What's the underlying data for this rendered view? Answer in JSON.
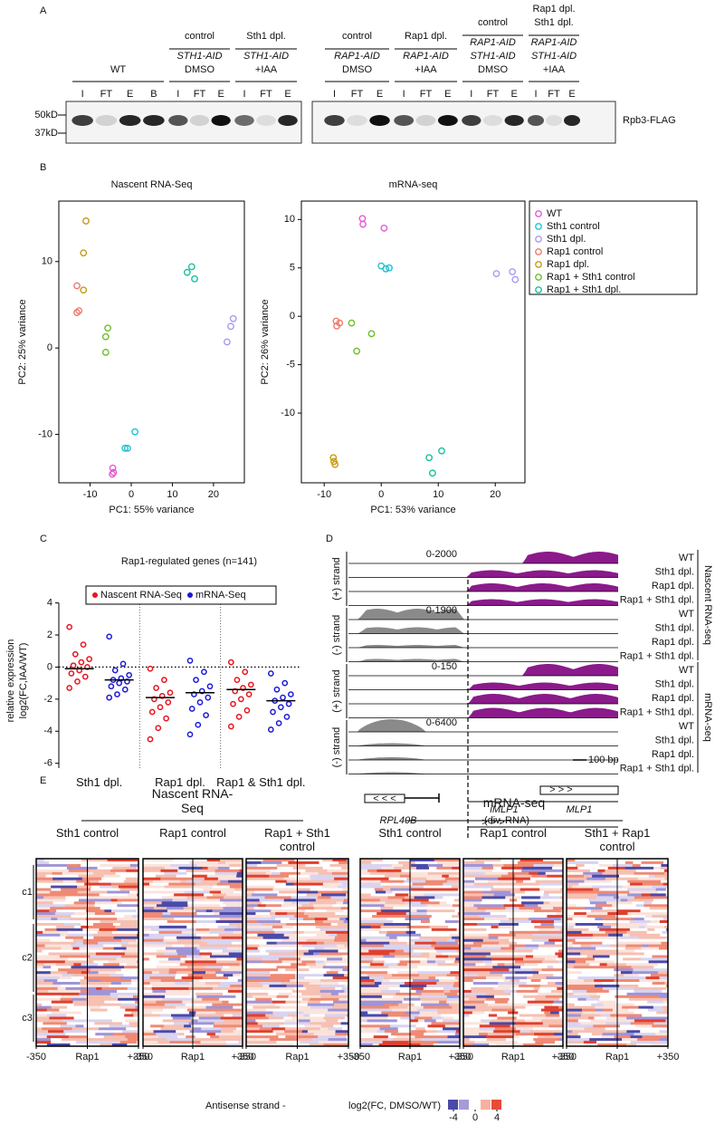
{
  "panel_labels": [
    "A",
    "B",
    "C",
    "D",
    "E"
  ],
  "panel_a": {
    "groups": [
      {
        "condition": [
          "WT"
        ],
        "lanes": [
          "I",
          "FT",
          "E",
          "B"
        ]
      },
      {
        "condition": [
          "control"
        ],
        "genotype": [
          "STH1-AID"
        ],
        "treatment": "DMSO",
        "lanes": [
          "I",
          "FT",
          "E"
        ]
      },
      {
        "condition": [
          "Sth1 dpl."
        ],
        "genotype": [
          "STH1-AID"
        ],
        "treatment": "+IAA",
        "lanes": [
          "I",
          "FT",
          "E"
        ]
      },
      {
        "condition": [
          "control"
        ],
        "genotype": [
          "RAP1-AID"
        ],
        "treatment": "DMSO",
        "lanes": [
          "I",
          "FT",
          "E"
        ]
      },
      {
        "condition": [
          "Rap1 dpl."
        ],
        "genotype": [
          "RAP1-AID"
        ],
        "treatment": "+IAA",
        "lanes": [
          "I",
          "FT",
          "E"
        ]
      },
      {
        "condition": [
          "control"
        ],
        "genotype": [
          "RAP1-AID",
          "STH1-AID"
        ],
        "treatment": "DMSO",
        "lanes": [
          "I",
          "FT",
          "E"
        ]
      },
      {
        "condition": [
          "Rap1 dpl.",
          "Sth1 dpl."
        ],
        "genotype": [
          "RAP1-AID",
          "STH1-AID"
        ],
        "treatment": "+IAA",
        "lanes": [
          "I",
          "FT",
          "E"
        ]
      }
    ],
    "markers": [
      "50kD",
      "37kD"
    ],
    "protein": "Rpb3-FLAG"
  },
  "chart_data": [
    {
      "type": "scatter",
      "title": "Nascent RNA-Seq",
      "xlabel": "PC1: 55% variance",
      "ylabel": "PC2: 25% variance",
      "xlim": [
        -17.6,
        27.5
      ],
      "ylim": [
        -15.6,
        17
      ],
      "xticks": [
        -10,
        0,
        10,
        20
      ],
      "yticks": [
        -10,
        0,
        10
      ],
      "series": [
        {
          "name": "WT",
          "color": "#e45ad6",
          "x": [
            -4.5,
            -4.3,
            -4.6
          ],
          "values": [
            -13.9,
            -14.4,
            -14.6
          ]
        },
        {
          "name": "Sth1 control",
          "color": "#1ec2d4",
          "x": [
            0.9,
            -0.9,
            -1.5
          ],
          "values": [
            -9.7,
            -11.6,
            -11.6
          ]
        },
        {
          "name": "Sth1 dpl.",
          "color": "#a79bef",
          "x": [
            24.8,
            24.2,
            23.3
          ],
          "values": [
            3.4,
            2.5,
            0.7
          ]
        },
        {
          "name": "Rap1 control",
          "color": "#ef7b6d",
          "x": [
            -13.2,
            -12.7,
            -13.2
          ],
          "values": [
            7.2,
            4.3,
            4.1
          ]
        },
        {
          "name": "Rap1 dpl.",
          "color": "#c59a1a",
          "x": [
            -11,
            -11.6,
            -11.6
          ],
          "values": [
            14.7,
            11,
            6.7
          ]
        },
        {
          "name": "Rap1 + Sth1 control",
          "color": "#6dbe2a",
          "x": [
            -5.7,
            -6.2,
            -6.2
          ],
          "values": [
            2.3,
            1.3,
            -0.5
          ]
        },
        {
          "name": "Rap1 + Sth1 dpl.",
          "color": "#1bbf9c",
          "x": [
            14.7,
            13.6,
            15.4
          ],
          "values": [
            9.4,
            8.75,
            8
          ]
        }
      ]
    },
    {
      "type": "scatter",
      "title": "mRNA-seq",
      "xlabel": "PC1: 53% variance",
      "ylabel": "PC2: 26% variance",
      "xlim": [
        -14,
        25.2
      ],
      "ylim": [
        -17.2,
        11.9
      ],
      "xticks": [
        -10,
        0,
        10,
        20
      ],
      "yticks": [
        -10,
        -5,
        0,
        5,
        10
      ],
      "series": [
        {
          "color": "#e45ad6",
          "x": [
            -3.3,
            -3.2,
            0.5
          ],
          "values": [
            10.1,
            9.5,
            9.1
          ]
        },
        {
          "color": "#1ec2d4",
          "x": [
            0,
            0.8,
            1.4
          ],
          "values": [
            5.2,
            4.9,
            5.0
          ]
        },
        {
          "color": "#a79bef",
          "x": [
            20.2,
            23,
            23.5
          ],
          "values": [
            4.4,
            4.6,
            3.8
          ]
        },
        {
          "color": "#ef7b6d",
          "x": [
            -7.9,
            -7.8,
            -7.3
          ],
          "values": [
            -0.5,
            -1,
            -0.7
          ]
        },
        {
          "color": "#c59a1a",
          "x": [
            -8.4,
            -8.3,
            -8.1
          ],
          "values": [
            -14.6,
            -15,
            -15.3
          ]
        },
        {
          "color": "#6dbe2a",
          "x": [
            -5.2,
            -4.3,
            -1.7
          ],
          "values": [
            -0.7,
            -3.6,
            -1.8
          ]
        },
        {
          "color": "#1bbf9c",
          "x": [
            8.4,
            9,
            10.6
          ],
          "values": [
            -14.6,
            -16.2,
            -13.9
          ]
        }
      ]
    },
    {
      "type": "dot",
      "title": "Rap1-regulated genes (n=141)",
      "ylabel": [
        "relative expression",
        "log2(FC,IAA/WT)"
      ],
      "categories": [
        "Sth1 dpl.",
        "Rap1 dpl.",
        "Rap1 & Sth1 dpl."
      ],
      "ylim": [
        -6.3,
        4.6
      ],
      "yticks": [
        -6,
        -4,
        -2,
        0,
        2,
        4
      ],
      "series": [
        {
          "name": "Nascent RNA-Seq",
          "color": "#e8141e",
          "values": [
            -0.1,
            -1.9,
            -1.4
          ],
          "points": [
            [
              2.5,
              1.4,
              0.8,
              0.5,
              0.3,
              0.1,
              0,
              -0.2,
              -0.4,
              -0.6,
              -0.9,
              -1.3
            ],
            [
              -0.1,
              -0.8,
              -1.3,
              -1.6,
              -1.8,
              -2.0,
              -2.2,
              -2.5,
              -2.8,
              -3.2,
              -3.8,
              -4.5
            ],
            [
              0.3,
              -0.3,
              -0.8,
              -1.1,
              -1.3,
              -1.5,
              -1.7,
              -2.0,
              -2.3,
              -2.7,
              -3.1,
              -3.7
            ]
          ]
        },
        {
          "name": "mRNA-Seq",
          "color": "#1a1ad8",
          "values": [
            -0.8,
            -1.6,
            -2.1
          ],
          "points": [
            [
              1.9,
              0.2,
              -0.2,
              -0.5,
              -0.7,
              -0.8,
              -0.9,
              -1.0,
              -1.2,
              -1.4,
              -1.7,
              -1.9
            ],
            [
              0.4,
              -0.3,
              -0.8,
              -1.2,
              -1.5,
              -1.7,
              -1.9,
              -2.2,
              -2.6,
              -3.0,
              -3.6,
              -4.2
            ],
            [
              -0.4,
              -1.0,
              -1.4,
              -1.7,
              -1.9,
              -2.1,
              -2.3,
              -2.5,
              -2.8,
              -3.1,
              -3.5,
              -3.9
            ]
          ]
        }
      ]
    }
  ],
  "panel_d": {
    "groups": [
      {
        "strand": "(+) strand",
        "range": "0-2000"
      },
      {
        "strand": "(-) strand",
        "range": "0-1900"
      },
      {
        "strand": "(+) strand",
        "range": "0-150"
      },
      {
        "strand": "(-) strand",
        "range": "0-6400"
      }
    ],
    "tracks": [
      "WT",
      "Sth1 dpl.",
      "Rap1 dpl.",
      "Rap1 + Sth1 dpl."
    ],
    "datasets": [
      "Nascent RNA-seq",
      "mRNA-seq"
    ],
    "scale": "100 bp",
    "genes": {
      "rpl40b": "RPL40B",
      "imlp1": "iMLP1",
      "div": "(div. RNA)",
      "mlp1": "MLP1",
      "rev": "< < <",
      "fwd": "> > >"
    }
  },
  "panel_e": {
    "datasets": [
      {
        "title": "Nascent RNA-Seq",
        "maps": [
          "Sth1 control",
          "Rap1 control",
          "Rap1 + Sth1 control"
        ]
      },
      {
        "title": "mRNA-seq",
        "maps": [
          "Sth1 control",
          "Rap1 control",
          "Sth1 + Rap1 control"
        ]
      }
    ],
    "clusters": [
      "c1",
      "c2",
      "c3"
    ],
    "xlim": [
      -350,
      350
    ],
    "xticks": [
      -350,
      {
        "value": 0,
        "label": "Rap1"
      },
      {
        "value": 350,
        "label": "+350"
      }
    ],
    "colorbar": {
      "title": "Antisense strand -",
      "label": "log2(FC, DMSO/WT)",
      "lim": [
        -5,
        5
      ],
      "ticks": [
        -4,
        0,
        4
      ],
      "colors": [
        "#4a4aa8",
        "#a89ad8",
        "#ffffff",
        "#f8b0a0",
        "#e84a3a"
      ]
    }
  }
}
